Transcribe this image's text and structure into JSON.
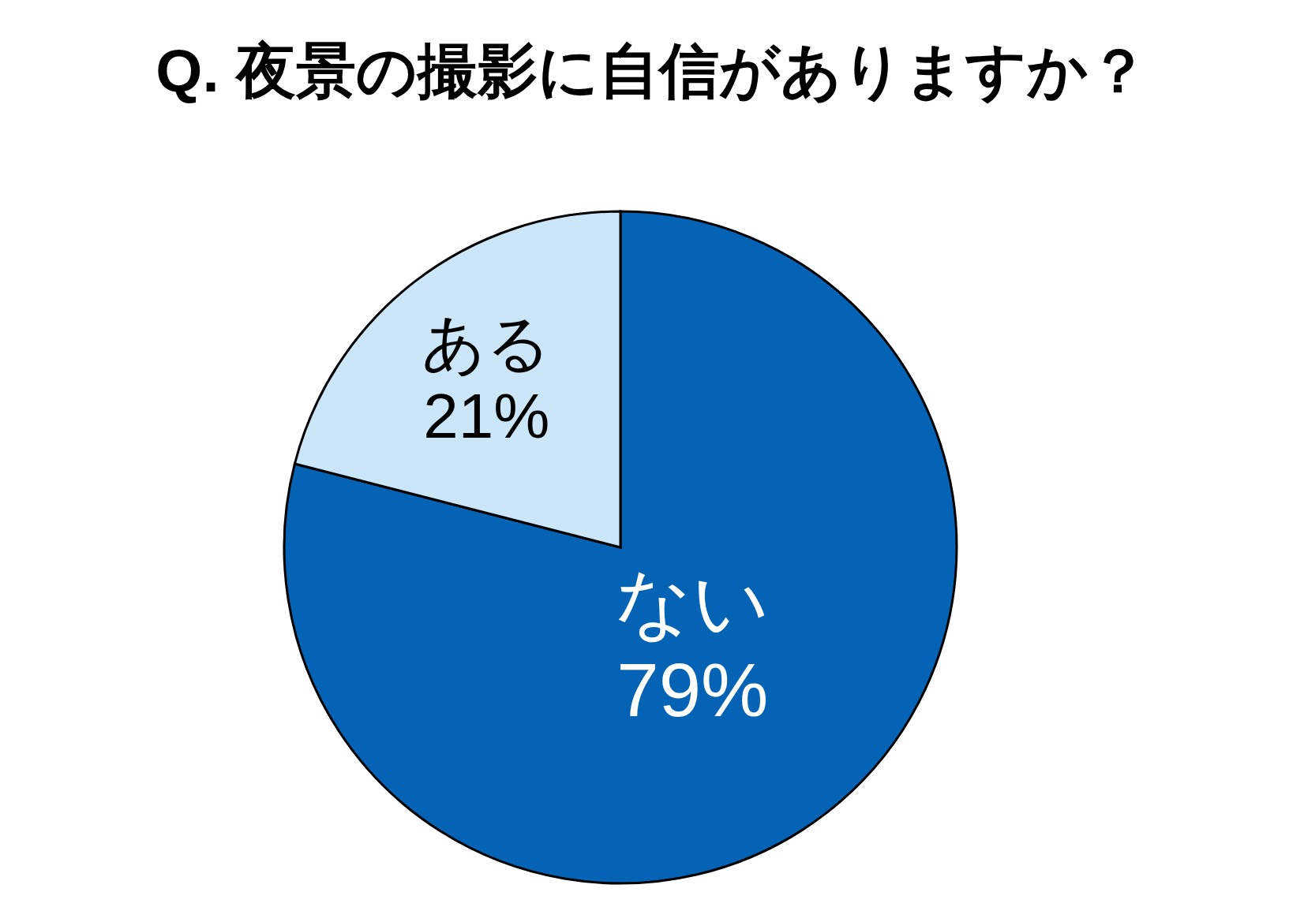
{
  "chart_data": {
    "type": "pie",
    "title": "Q. 夜景の撮影に自信がありますか？",
    "categories": [
      "ない",
      "ある"
    ],
    "values": [
      79,
      21
    ],
    "colors": [
      "#0563b5",
      "#cbe6f8"
    ],
    "value_labels": [
      "79%",
      "21%"
    ]
  }
}
